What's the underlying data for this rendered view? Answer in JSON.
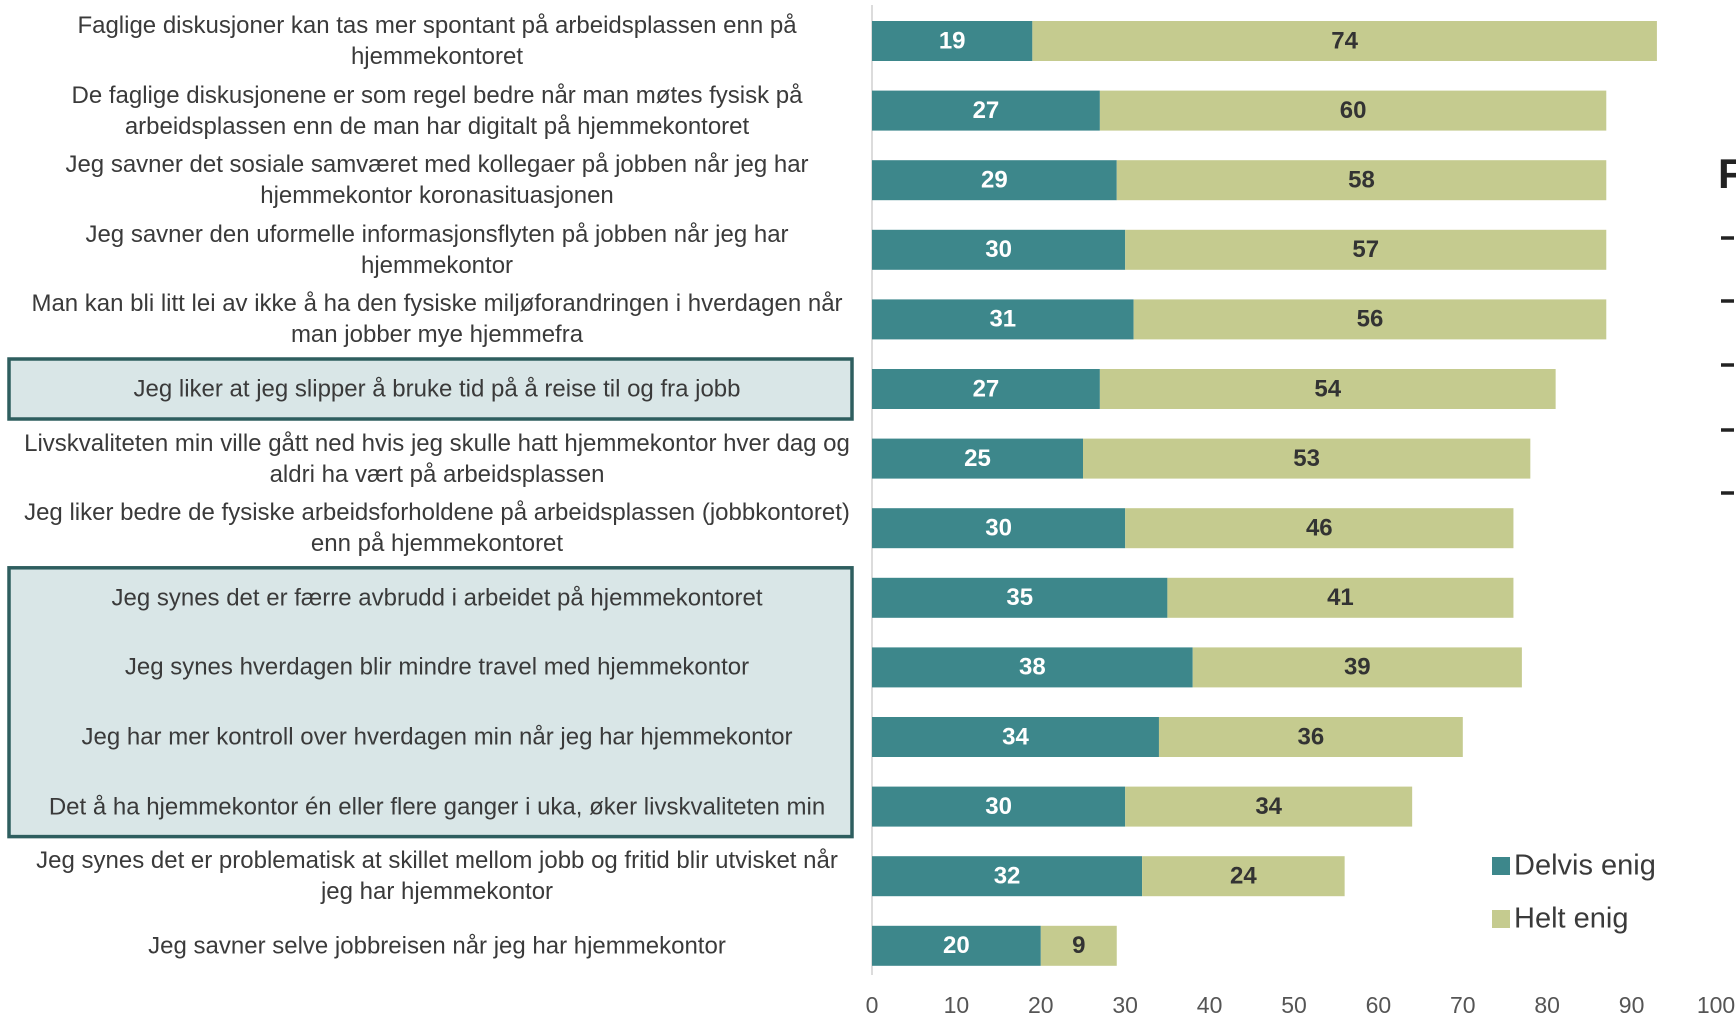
{
  "chart_data": {
    "type": "stacked_bar_horizontal",
    "categories": [
      "Faglige diskusjoner kan tas mer spontant på arbeidsplassen enn på hjemmekontoret",
      "De faglige diskusjonene er som regel bedre når man møtes fysisk på arbeidsplassen enn de man har digitalt på hjemmekontoret",
      "Jeg savner det sosiale samværet med kollegaer på jobben når jeg har hjemmekontor koronasituasjonen",
      "Jeg savner den uformelle informasjonsflyten på jobben når jeg har hjemmekontor",
      "Man kan bli litt lei av ikke å ha den fysiske miljøforandringen i hverdagen når man jobber mye hjemmefra",
      "Jeg liker at jeg slipper å bruke tid på å reise til og fra jobb",
      "Livskvaliteten min ville gått ned hvis jeg skulle hatt hjemmekontor hver dag og aldri ha vært på arbeidsplassen",
      "Jeg liker bedre de fysiske arbeidsforholdene på arbeidsplassen (jobbkontoret) enn på hjemmekontoret",
      "Jeg synes det er færre avbrudd i arbeidet på hjemmekontoret",
      "Jeg synes hverdagen blir mindre travel med hjemmekontor",
      "Jeg har mer kontroll over hverdagen min når jeg har hjemmekontor",
      "Det å ha hjemmekontor én eller flere ganger i uka, øker livskvaliteten min",
      "Jeg synes det er problematisk at skillet mellom jobb og fritid blir utvisket når jeg har hjemmekontor",
      "Jeg savner selve jobbreisen når jeg har hjemmekontor"
    ],
    "series": [
      {
        "name": "Delvis enig",
        "color": "#3d878b",
        "values": [
          19,
          27,
          29,
          30,
          31,
          27,
          25,
          30,
          35,
          38,
          34,
          30,
          32,
          20
        ]
      },
      {
        "name": "Helt enig",
        "color": "#c5cb8f",
        "values": [
          74,
          60,
          58,
          57,
          56,
          54,
          53,
          46,
          41,
          39,
          36,
          34,
          24,
          9
        ]
      }
    ],
    "xlim": [
      0,
      100
    ],
    "xticks": [
      0,
      10,
      20,
      30,
      40,
      50,
      60,
      70,
      80,
      90,
      100
    ],
    "highlighted": [
      [
        5,
        5
      ],
      [
        8,
        11
      ]
    ],
    "legend": "bottom-right",
    "annotations": [
      "F"
    ]
  }
}
